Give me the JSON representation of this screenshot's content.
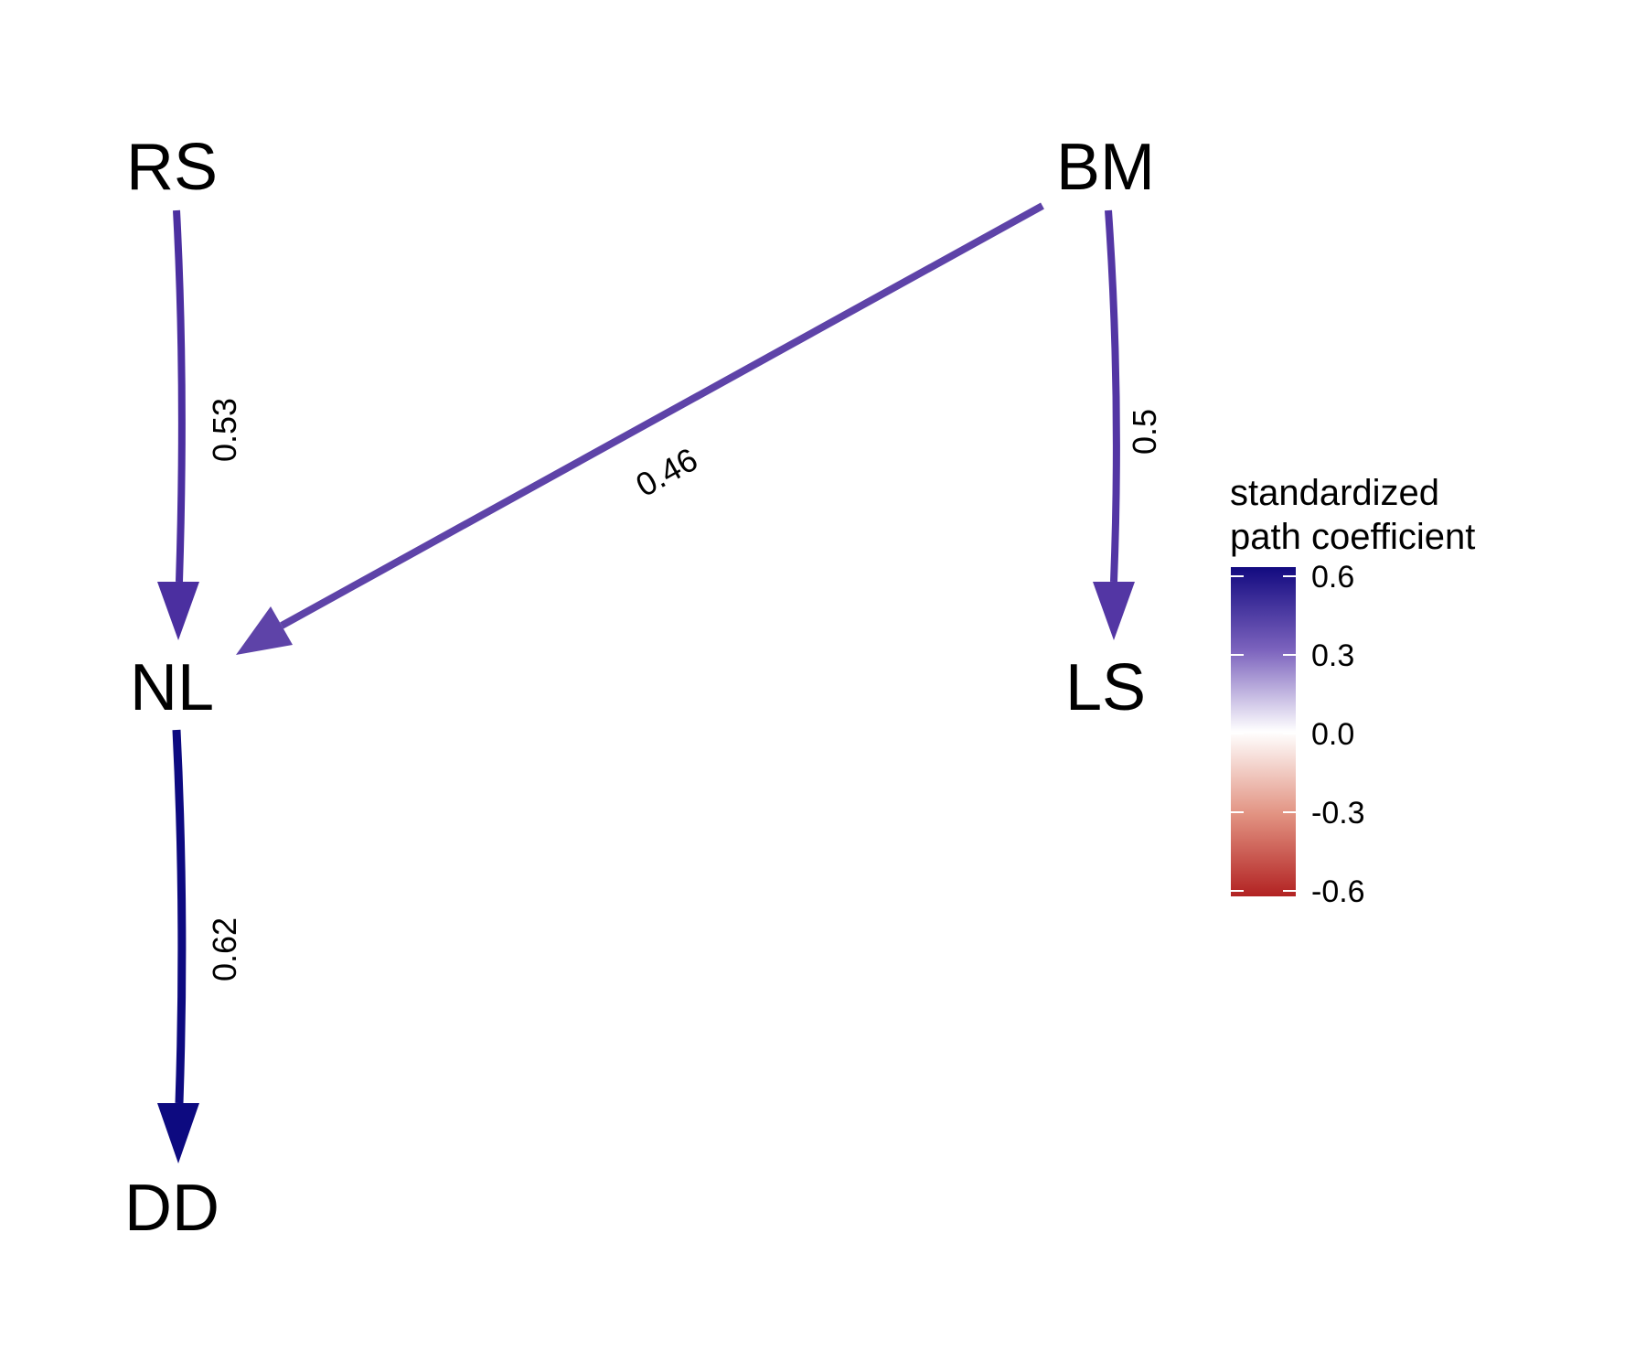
{
  "nodes": {
    "rs": "RS",
    "bm": "BM",
    "nl": "NL",
    "ls": "LS",
    "dd": "DD"
  },
  "edges": [
    {
      "from": "RS",
      "to": "NL",
      "label": "0.53",
      "value": 0.53,
      "color": "#4b2fa0"
    },
    {
      "from": "BM",
      "to": "NL",
      "label": "0.46",
      "value": 0.46,
      "color": "#5e43a8"
    },
    {
      "from": "BM",
      "to": "LS",
      "label": "0.5",
      "value": 0.5,
      "color": "#5336a4"
    },
    {
      "from": "NL",
      "to": "DD",
      "label": "0.62",
      "value": 0.62,
      "color": "#0d0a80"
    }
  ],
  "legend": {
    "title_line1": "standardized",
    "title_line2": "path coefficient",
    "ticks": [
      "0.6",
      "0.3",
      "0.0",
      "-0.3",
      "-0.6"
    ],
    "colors": {
      "high": "#120a80",
      "mid": "#ffffff",
      "low": "#b22222"
    }
  }
}
